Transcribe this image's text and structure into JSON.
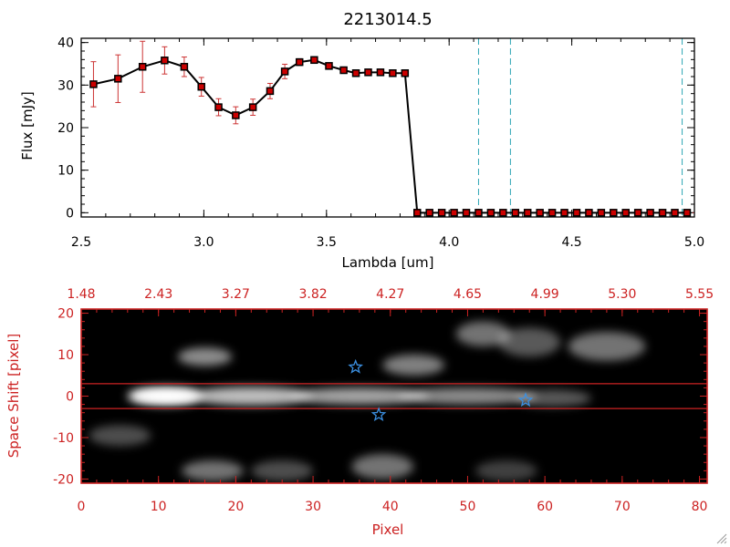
{
  "chart_data": [
    {
      "type": "line",
      "title": "2213014.5",
      "xlabel": "Lambda [um]",
      "ylabel": "Flux [mJy]",
      "xlim": [
        2.5,
        5.0
      ],
      "ylim": [
        -1,
        41
      ],
      "xticks": [
        2.5,
        3.0,
        3.5,
        4.0,
        4.5,
        5.0
      ],
      "xtick_labels": [
        "2.5",
        "3.0",
        "3.5",
        "4.0",
        "4.5",
        "5.0"
      ],
      "yticks": [
        0,
        10,
        20,
        30,
        40
      ],
      "ytick_labels": [
        "0",
        "10",
        "20",
        "30",
        "40"
      ],
      "series": [
        {
          "name": "flux",
          "x": [
            2.55,
            2.65,
            2.75,
            2.84,
            2.92,
            2.99,
            3.06,
            3.13,
            3.2,
            3.27,
            3.33,
            3.39,
            3.45,
            3.51,
            3.57,
            3.62,
            3.67,
            3.72,
            3.77,
            3.82,
            3.87,
            3.92,
            3.97,
            4.02,
            4.07,
            4.12,
            4.17,
            4.22,
            4.27,
            4.32,
            4.37,
            4.42,
            4.47,
            4.52,
            4.57,
            4.62,
            4.67,
            4.72,
            4.77,
            4.82,
            4.87,
            4.92,
            4.97
          ],
          "y": [
            30.2,
            31.5,
            34.3,
            35.8,
            34.3,
            29.6,
            24.8,
            22.9,
            24.8,
            28.6,
            33.2,
            35.4,
            35.9,
            34.5,
            33.5,
            32.8,
            33.0,
            33.0,
            32.8,
            32.8,
            0,
            0,
            0,
            0,
            0,
            0,
            0,
            0,
            0,
            0,
            0,
            0,
            0,
            0,
            0,
            0,
            0,
            0,
            0,
            0,
            0,
            0,
            0
          ],
          "yerr": [
            5.3,
            5.6,
            6.0,
            3.2,
            2.3,
            2.2,
            2.0,
            2.0,
            1.9,
            1.8,
            1.7,
            0.8,
            0.7,
            0.6,
            0.6,
            0.6,
            0.5,
            0.5,
            0.5,
            0.5,
            0,
            0,
            0,
            0,
            0,
            0,
            0,
            0,
            0,
            0,
            0,
            0,
            0,
            0,
            0,
            0,
            0,
            0,
            0,
            0,
            0,
            0,
            0
          ]
        }
      ],
      "vlines": [
        4.12,
        4.25,
        4.95
      ],
      "colors": {
        "line": "#000000",
        "marker": "#cc0000",
        "errorbar": "#cc3333",
        "vline": "#2ea6b5"
      }
    },
    {
      "type": "heatmap",
      "xlabel": "Pixel",
      "ylabel": "Space Shift [pixel]",
      "xlim": [
        0,
        81
      ],
      "ylim": [
        -21,
        21
      ],
      "xticks": [
        0,
        10,
        20,
        30,
        40,
        50,
        60,
        70,
        80
      ],
      "xtick_labels": [
        "0",
        "10",
        "20",
        "30",
        "40",
        "50",
        "60",
        "70",
        "80"
      ],
      "yticks": [
        -20,
        -10,
        0,
        10,
        20
      ],
      "ytick_labels": [
        "-20",
        "-10",
        "0",
        "10",
        "20"
      ],
      "top_xticks": [
        0,
        10,
        20,
        30,
        40,
        50,
        60,
        70,
        80
      ],
      "top_xtick_labels": [
        "1.48",
        "2.43",
        "3.27",
        "3.82",
        "4.27",
        "4.65",
        "4.99",
        "5.30",
        "5.55"
      ],
      "hlines": [
        3,
        -3
      ],
      "stars": [
        {
          "x": 35.5,
          "y": 7
        },
        {
          "x": 38.5,
          "y": -4.5
        },
        {
          "x": 57.5,
          "y": -1
        }
      ],
      "blobs": [
        {
          "x": 11,
          "y": 0,
          "sx": 5,
          "sy": 2.2,
          "a": 1.0
        },
        {
          "x": 22,
          "y": 0,
          "sx": 8,
          "sy": 2.2,
          "a": 0.75
        },
        {
          "x": 36,
          "y": 0,
          "sx": 9,
          "sy": 2.0,
          "a": 0.65
        },
        {
          "x": 50,
          "y": 0,
          "sx": 9,
          "sy": 2.0,
          "a": 0.55
        },
        {
          "x": 61,
          "y": -0.5,
          "sx": 5,
          "sy": 2.0,
          "a": 0.35
        },
        {
          "x": 16,
          "y": 9.5,
          "sx": 3.5,
          "sy": 2.2,
          "a": 0.55
        },
        {
          "x": 43,
          "y": 7.5,
          "sx": 4,
          "sy": 2.5,
          "a": 0.5
        },
        {
          "x": 52,
          "y": 15,
          "sx": 3.5,
          "sy": 3,
          "a": 0.45
        },
        {
          "x": 58,
          "y": 13,
          "sx": 4,
          "sy": 3.5,
          "a": 0.35
        },
        {
          "x": 68,
          "y": 12,
          "sx": 5,
          "sy": 3.5,
          "a": 0.45
        },
        {
          "x": 5,
          "y": -9.5,
          "sx": 4,
          "sy": 2.5,
          "a": 0.3
        },
        {
          "x": 17,
          "y": -18,
          "sx": 4,
          "sy": 2.5,
          "a": 0.45
        },
        {
          "x": 26,
          "y": -18,
          "sx": 4,
          "sy": 2.5,
          "a": 0.3
        },
        {
          "x": 39,
          "y": -17,
          "sx": 4,
          "sy": 3,
          "a": 0.45
        },
        {
          "x": 55,
          "y": -18,
          "sx": 4,
          "sy": 2.5,
          "a": 0.25
        }
      ],
      "colors": {
        "frame": "#cc2222",
        "star": "#3b8fe0"
      }
    }
  ]
}
